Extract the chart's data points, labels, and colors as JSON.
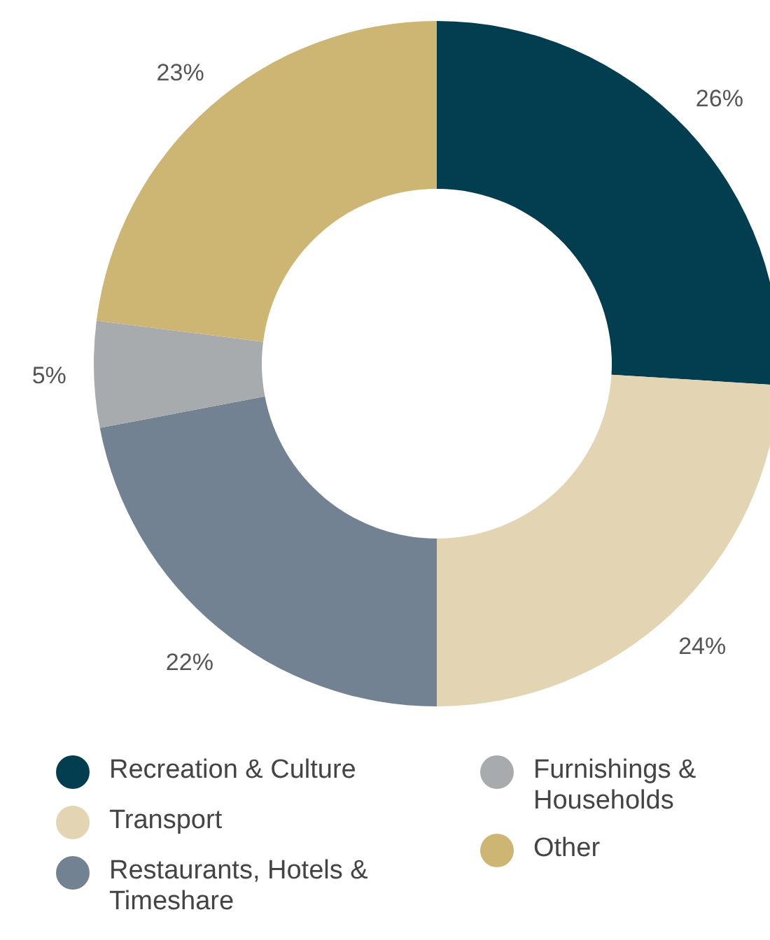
{
  "chart_data": {
    "type": "donut",
    "categories": [
      "Recreation & Culture",
      "Transport",
      "Restaurants, Hotels & Timeshare",
      "Furnishings & Households",
      "Other"
    ],
    "values": [
      26,
      24,
      22,
      5,
      23
    ],
    "colors": [
      "#023d50",
      "#e3d5b3",
      "#728293",
      "#a7abad",
      "#cdb574"
    ],
    "value_labels": [
      "26%",
      "24%",
      "22%",
      "5%",
      "23%"
    ],
    "legend": "bottom"
  }
}
